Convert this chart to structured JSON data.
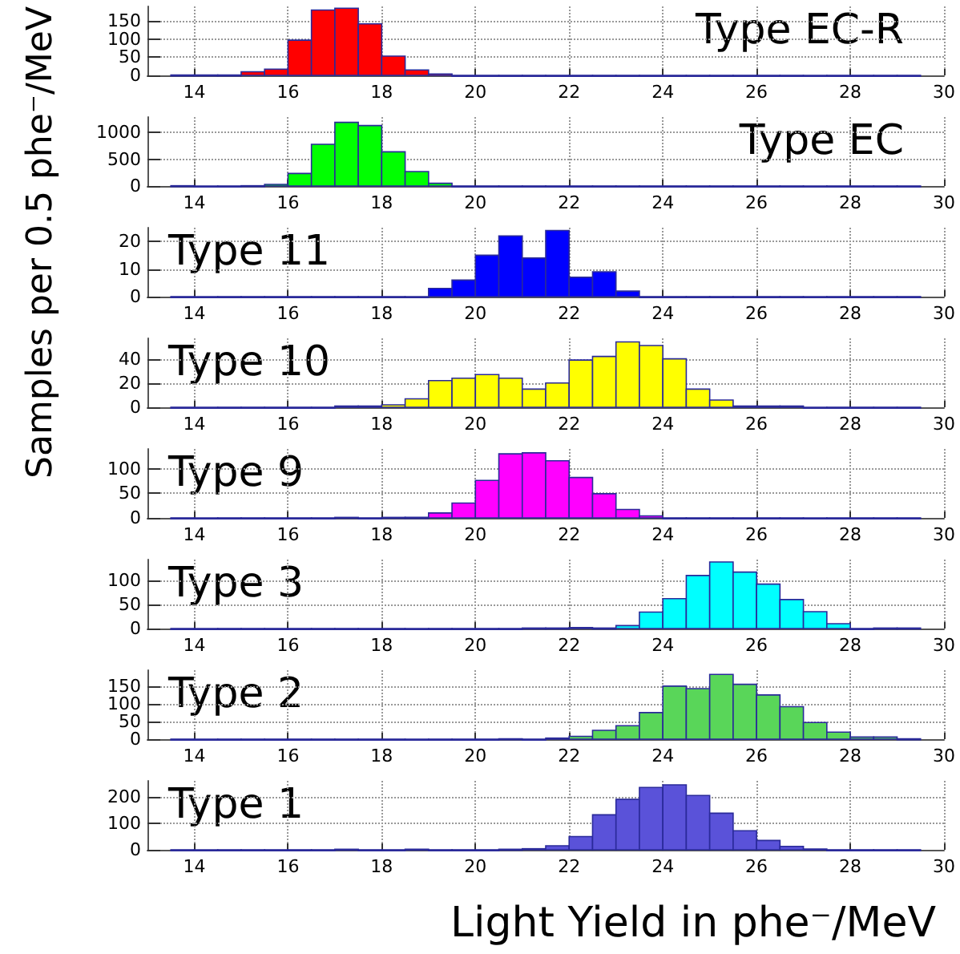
{
  "chart_data": [
    {
      "type": "histogram",
      "title": "Type EC-R",
      "ylabel": "Samples per 0.5 phe⁻/MeV",
      "color": "#ff0000",
      "bins": [
        13.5,
        14,
        14.5,
        15,
        15.5,
        16,
        16.5,
        17,
        17.5,
        18,
        18.5,
        19,
        19.5,
        20,
        20.5,
        21,
        21.5,
        22,
        22.5,
        23,
        23.5,
        24,
        24.5,
        25,
        25.5,
        26,
        26.5,
        27,
        27.5,
        28,
        28.5,
        29,
        29.5
      ],
      "values": [
        1,
        1,
        1,
        10,
        17,
        97,
        180,
        185,
        142,
        53,
        15,
        4,
        0,
        0,
        0,
        0,
        0,
        0,
        0,
        0,
        0,
        0,
        0,
        0,
        0,
        0,
        0,
        0,
        0,
        0,
        0,
        0
      ],
      "xlim": [
        13,
        30
      ],
      "xticks": [
        14,
        16,
        18,
        20,
        22,
        24,
        26,
        28,
        30
      ],
      "ylim": [
        0,
        190
      ],
      "yticks": [
        0,
        50,
        100,
        150
      ],
      "grid": true
    },
    {
      "type": "histogram",
      "title": "Type EC",
      "color": "#00ff00",
      "bins": [
        13.5,
        14,
        14.5,
        15,
        15.5,
        16,
        16.5,
        17,
        17.5,
        18,
        18.5,
        19,
        19.5,
        20,
        20.5,
        21,
        21.5,
        22,
        22.5,
        23,
        23.5,
        24,
        24.5,
        25,
        25.5,
        26,
        26.5,
        27,
        27.5,
        28,
        28.5,
        29,
        29.5
      ],
      "values": [
        5,
        0,
        0,
        5,
        30,
        235,
        780,
        1190,
        1130,
        640,
        270,
        50,
        0,
        0,
        0,
        0,
        0,
        0,
        0,
        0,
        0,
        0,
        0,
        0,
        0,
        0,
        0,
        0,
        0,
        0,
        0,
        0
      ],
      "xlim": [
        13,
        30
      ],
      "xticks": [
        14,
        16,
        18,
        20,
        22,
        24,
        26,
        28,
        30
      ],
      "ylim": [
        0,
        1290
      ],
      "yticks": [
        0,
        500,
        1000
      ],
      "grid": true
    },
    {
      "type": "histogram",
      "title": "Type 11",
      "color": "#0000ff",
      "bins": [
        13.5,
        14,
        14.5,
        15,
        15.5,
        16,
        16.5,
        17,
        17.5,
        18,
        18.5,
        19,
        19.5,
        20,
        20.5,
        21,
        21.5,
        22,
        22.5,
        23,
        23.5,
        24,
        24.5,
        25,
        25.5,
        26,
        26.5,
        27,
        27.5,
        28,
        28.5,
        29,
        29.5
      ],
      "values": [
        0,
        0,
        0,
        0,
        0,
        0,
        0,
        0,
        0,
        0,
        0,
        3,
        6,
        15,
        22,
        14,
        24,
        7,
        9,
        2,
        0,
        0,
        0,
        0,
        0,
        0,
        0,
        0,
        0,
        0,
        0,
        0
      ],
      "xlim": [
        13,
        30
      ],
      "xticks": [
        14,
        16,
        18,
        20,
        22,
        24,
        26,
        28,
        30
      ],
      "ylim": [
        0,
        25
      ],
      "yticks": [
        0,
        10,
        20
      ],
      "grid": true
    },
    {
      "type": "histogram",
      "title": "Type 10",
      "color": "#ffff00",
      "bins": [
        13.5,
        14,
        14.5,
        15,
        15.5,
        16,
        16.5,
        17,
        17.5,
        18,
        18.5,
        19,
        19.5,
        20,
        20.5,
        21,
        21.5,
        22,
        22.5,
        23,
        23.5,
        24,
        24.5,
        25,
        25.5,
        26,
        26.5,
        27,
        27.5,
        28,
        28.5,
        29,
        29.5
      ],
      "values": [
        0,
        0,
        0,
        0,
        0,
        0,
        0,
        1,
        1,
        2,
        7,
        22,
        24,
        27,
        24,
        15,
        20,
        39,
        42,
        54,
        51,
        40,
        15,
        6,
        1,
        1,
        1,
        0,
        0,
        0,
        0,
        0
      ],
      "xlim": [
        13,
        30
      ],
      "xticks": [
        14,
        16,
        18,
        20,
        22,
        24,
        26,
        28,
        30
      ],
      "ylim": [
        0,
        57
      ],
      "yticks": [
        0,
        20,
        40
      ],
      "grid": true
    },
    {
      "type": "histogram",
      "title": "Type 9",
      "color": "#ff00ff",
      "bins": [
        13.5,
        14,
        14.5,
        15,
        15.5,
        16,
        16.5,
        17,
        17.5,
        18,
        18.5,
        19,
        19.5,
        20,
        20.5,
        21,
        21.5,
        22,
        22.5,
        23,
        23.5,
        24,
        24.5,
        25,
        25.5,
        26,
        26.5,
        27,
        27.5,
        28,
        28.5,
        29,
        29.5
      ],
      "values": [
        0,
        0,
        0,
        0,
        0,
        0,
        0,
        1,
        0,
        1,
        1,
        10,
        30,
        76,
        130,
        132,
        116,
        82,
        49,
        17,
        4,
        0,
        0,
        0,
        0,
        0,
        0,
        0,
        0,
        0,
        0,
        0
      ],
      "xlim": [
        13,
        30
      ],
      "xticks": [
        14,
        16,
        18,
        20,
        22,
        24,
        26,
        28,
        30
      ],
      "ylim": [
        0,
        140
      ],
      "yticks": [
        0,
        50,
        100
      ],
      "grid": true
    },
    {
      "type": "histogram",
      "title": "Type 3",
      "color": "#00ffff",
      "bins": [
        13.5,
        14,
        14.5,
        15,
        15.5,
        16,
        16.5,
        17,
        17.5,
        18,
        18.5,
        19,
        19.5,
        20,
        20.5,
        21,
        21.5,
        22,
        22.5,
        23,
        23.5,
        24,
        24.5,
        25,
        25.5,
        26,
        26.5,
        27,
        27.5,
        28,
        28.5,
        29,
        29.5
      ],
      "values": [
        0,
        0,
        0,
        0,
        0,
        0,
        0,
        0,
        0,
        0,
        0,
        0,
        0,
        0,
        0,
        1,
        1,
        2,
        1,
        6,
        34,
        62,
        110,
        138,
        117,
        92,
        60,
        35,
        10,
        0,
        1,
        1
      ],
      "xlim": [
        13,
        30
      ],
      "xticks": [
        14,
        16,
        18,
        20,
        22,
        24,
        26,
        28,
        30
      ],
      "ylim": [
        0,
        143
      ],
      "yticks": [
        0,
        50,
        100
      ],
      "grid": true
    },
    {
      "type": "histogram",
      "title": "Type 2",
      "color": "#59d659",
      "bins": [
        13.5,
        14,
        14.5,
        15,
        15.5,
        16,
        16.5,
        17,
        17.5,
        18,
        18.5,
        19,
        19.5,
        20,
        20.5,
        21,
        21.5,
        22,
        22.5,
        23,
        23.5,
        24,
        24.5,
        25,
        25.5,
        26,
        26.5,
        27,
        27.5,
        28,
        28.5,
        29,
        29.5
      ],
      "values": [
        0,
        0,
        0,
        0,
        0,
        0,
        0,
        0,
        0,
        0,
        0,
        0,
        0,
        0,
        1,
        0,
        3,
        8,
        25,
        38,
        75,
        150,
        143,
        183,
        155,
        125,
        92,
        47,
        20,
        6,
        6,
        1
      ],
      "xlim": [
        13,
        30
      ],
      "xticks": [
        14,
        16,
        18,
        20,
        22,
        24,
        26,
        28,
        30
      ],
      "ylim": [
        0,
        195
      ],
      "yticks": [
        0,
        50,
        100,
        150
      ],
      "grid": true
    },
    {
      "type": "histogram",
      "title": "Type 1",
      "xlabel": "Light Yield in phe⁻/MeV",
      "color": "#5a52d9",
      "bins": [
        13.5,
        14,
        14.5,
        15,
        15.5,
        16,
        16.5,
        17,
        17.5,
        18,
        18.5,
        19,
        19.5,
        20,
        20.5,
        21,
        21.5,
        22,
        22.5,
        23,
        23.5,
        24,
        24.5,
        25,
        25.5,
        26,
        26.5,
        27,
        27.5,
        28,
        28.5,
        29,
        29.5
      ],
      "values": [
        0,
        0,
        0,
        0,
        0,
        0,
        0,
        2,
        0,
        0,
        2,
        0,
        0,
        0,
        2,
        4,
        15,
        50,
        132,
        190,
        235,
        245,
        205,
        138,
        72,
        35,
        13,
        3,
        0,
        0,
        0,
        0
      ],
      "xlim": [
        13,
        30
      ],
      "xticks": [
        14,
        16,
        18,
        20,
        22,
        24,
        26,
        28,
        30
      ],
      "ylim": [
        0,
        260
      ],
      "yticks": [
        0,
        100,
        200
      ],
      "grid": true
    }
  ]
}
